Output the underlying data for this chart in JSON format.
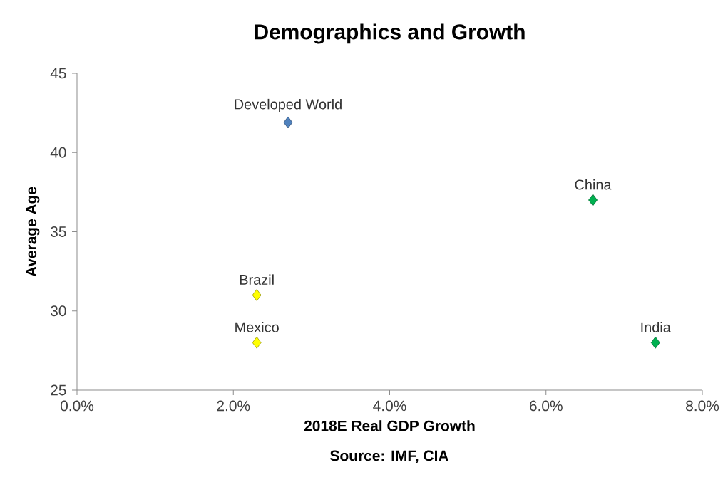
{
  "chart_data": {
    "type": "scatter",
    "title": "Demographics and Growth",
    "xlabel": "2018E Real GDP Growth",
    "ylabel": "Average Age",
    "x": [
      2.7,
      6.6,
      2.3,
      2.3,
      7.4
    ],
    "values": [
      41.9,
      37.0,
      31.0,
      28.0,
      28.0
    ],
    "colors": [
      "#4f81bd",
      "#00b050",
      "#ffff00",
      "#ffff00",
      "#00b050"
    ],
    "marker": "diamond",
    "xlim": [
      0,
      8
    ],
    "xticks": [
      {
        "value": 0,
        "label": "0.0%"
      },
      {
        "value": 2,
        "label": "2.0%"
      },
      {
        "value": 4,
        "label": "4.0%"
      },
      {
        "value": 6,
        "label": "6.0%"
      },
      {
        "value": 8,
        "label": "8.0%"
      }
    ],
    "ylim": [
      25,
      45
    ],
    "yticks": [
      25,
      30,
      35,
      40,
      45
    ],
    "annotations": [
      {
        "text": "Developed World",
        "x": 2.7,
        "y": 41.9
      },
      {
        "text": "China",
        "x": 6.6,
        "y": 37.0
      },
      {
        "text": "Brazil",
        "x": 2.3,
        "y": 31.0
      },
      {
        "text": "Mexico",
        "x": 2.3,
        "y": 28.0
      },
      {
        "text": "India",
        "x": 7.4,
        "y": 28.0
      },
      "Source: IMF, CIA"
    ]
  }
}
